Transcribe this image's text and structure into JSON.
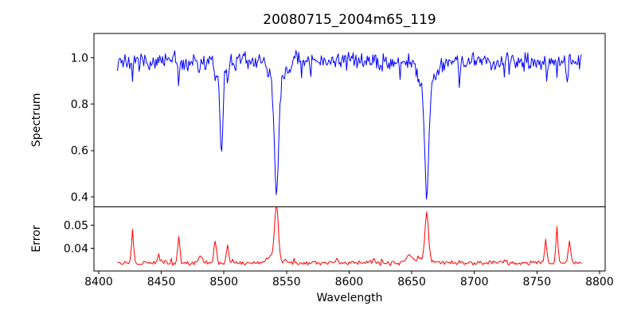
{
  "figure": {
    "background": "#ffffff",
    "frame_color": "#000000",
    "text_color": "#000000"
  },
  "chart_data": {
    "type": "line",
    "title": "20080715_2004m65_119",
    "xlabel": "Wavelength",
    "legend": "none",
    "grid": false,
    "xlim": [
      8396.2,
      8804.5
    ],
    "x_data_range": [
      8415,
      8786
    ],
    "xticks": {
      "values": [
        8400,
        8450,
        8500,
        8550,
        8600,
        8650,
        8700,
        8750,
        8800
      ],
      "labels": [
        "8400",
        "8450",
        "8500",
        "8550",
        "8600",
        "8650",
        "8700",
        "8750",
        "8800"
      ]
    },
    "noise_seed": 7,
    "panels": [
      {
        "name": "spectrum",
        "ylabel": "Spectrum",
        "color": "#0000ff",
        "ylim": [
          0.357,
          1.105
        ],
        "yticks": {
          "values": [
            1.0,
            0.8,
            0.6,
            0.4
          ],
          "labels": [
            "1.0",
            "0.8",
            "0.6",
            "0.4"
          ]
        },
        "baseline": 0.985,
        "sample_step": 0.75,
        "noise": {
          "amplitude": 0.045,
          "down_spike_prob": 0.035,
          "down_spike_max": 0.07,
          "up_spike_prob": 0.02,
          "up_spike_max": 0.035
        },
        "absorption_lines": [
          {
            "center": 8498.0,
            "depth": 0.4,
            "core_sigma": 1.1,
            "wing_sigma": 3.0,
            "wing_frac": 0.18
          },
          {
            "center": 8542.0,
            "depth": 0.59,
            "core_sigma": 1.5,
            "wing_sigma": 5.0,
            "wing_frac": 0.22
          },
          {
            "center": 8662.0,
            "depth": 0.57,
            "core_sigma": 1.6,
            "wing_sigma": 5.5,
            "wing_frac": 0.22
          }
        ],
        "narrow_dips": [
          {
            "center": 8427,
            "depth": 0.11,
            "sigma": 0.5
          },
          {
            "center": 8464,
            "depth": 0.08,
            "sigma": 0.5
          },
          {
            "center": 8480,
            "depth": 0.06,
            "sigma": 0.5
          },
          {
            "center": 8493,
            "depth": 0.08,
            "sigma": 0.6
          },
          {
            "center": 8504,
            "depth": 0.05,
            "sigma": 0.5
          },
          {
            "center": 8688,
            "depth": 0.12,
            "sigma": 0.5
          },
          {
            "center": 8758,
            "depth": 0.06,
            "sigma": 0.5
          },
          {
            "center": 8766,
            "depth": 0.07,
            "sigma": 0.5
          },
          {
            "center": 8774,
            "depth": 0.1,
            "sigma": 0.6
          }
        ],
        "key_points": [
          [
            8498,
            0.59
          ],
          [
            8542,
            0.4
          ],
          [
            8662,
            0.42
          ]
        ]
      },
      {
        "name": "error",
        "ylabel": "Error",
        "color": "#ff0000",
        "ylim": [
          0.0303,
          0.0579
        ],
        "yticks": {
          "values": [
            0.05,
            0.04
          ],
          "labels": [
            "0.05",
            "0.04"
          ]
        },
        "baseline": 0.0338,
        "sample_step": 1.0,
        "noise": {
          "amplitude": 0.0012,
          "down_spike_prob": 0.0,
          "down_spike_max": 0.0,
          "up_spike_prob": 0.03,
          "up_spike_max": 0.0015
        },
        "peaks": [
          {
            "center": 8427,
            "height": 0.0145,
            "sigma": 0.8
          },
          {
            "center": 8448,
            "height": 0.003,
            "sigma": 1.0
          },
          {
            "center": 8464,
            "height": 0.0108,
            "sigma": 0.9
          },
          {
            "center": 8481,
            "height": 0.004,
            "sigma": 1.0
          },
          {
            "center": 8493,
            "height": 0.0105,
            "sigma": 1.0
          },
          {
            "center": 8503,
            "height": 0.008,
            "sigma": 0.9
          },
          {
            "center": 8542,
            "height": 0.023,
            "sigma": 1.4
          },
          {
            "center": 8540,
            "height": 0.003,
            "sigma": 5.0
          },
          {
            "center": 8590,
            "height": 0.0015,
            "sigma": 1.5
          },
          {
            "center": 8620,
            "height": 0.0015,
            "sigma": 1.5
          },
          {
            "center": 8648,
            "height": 0.0035,
            "sigma": 2.0
          },
          {
            "center": 8662,
            "height": 0.019,
            "sigma": 1.3
          },
          {
            "center": 8660,
            "height": 0.0025,
            "sigma": 5.0
          },
          {
            "center": 8757,
            "height": 0.011,
            "sigma": 0.8
          },
          {
            "center": 8766,
            "height": 0.015,
            "sigma": 0.8
          },
          {
            "center": 8776,
            "height": 0.009,
            "sigma": 1.0
          }
        ],
        "key_points": [
          [
            8427,
            0.048
          ],
          [
            8464,
            0.0445
          ],
          [
            8542,
            0.057
          ],
          [
            8662,
            0.053
          ],
          [
            8766,
            0.049
          ]
        ]
      }
    ]
  }
}
